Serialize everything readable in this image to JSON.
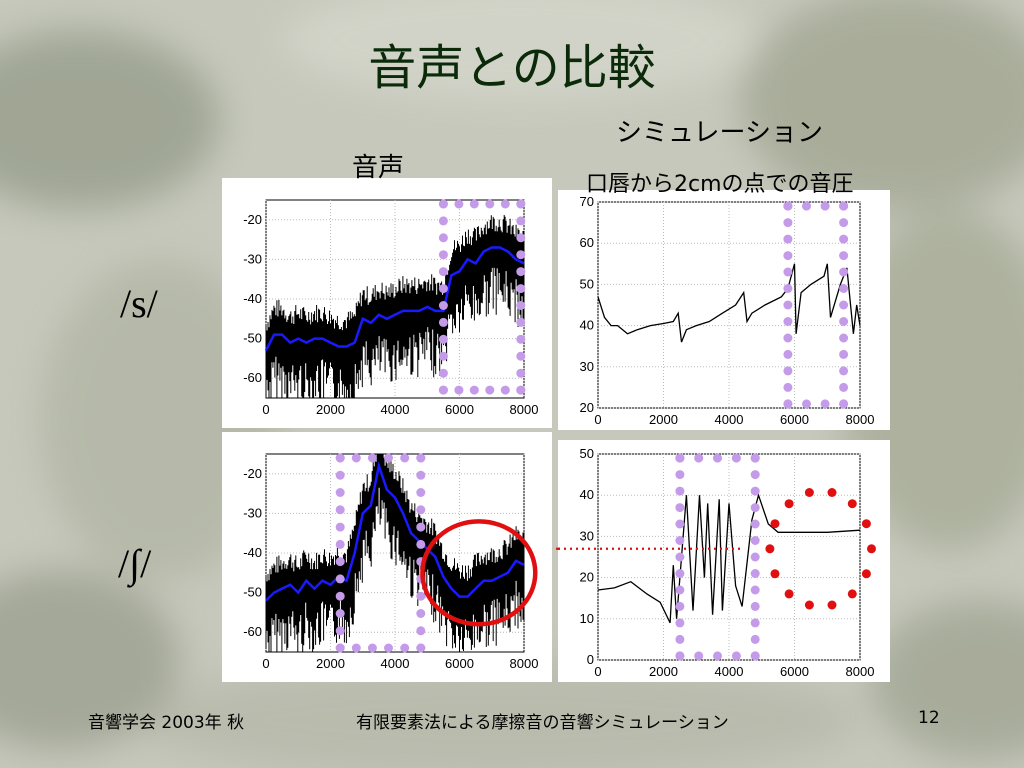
{
  "slide": {
    "title": "音声との比較",
    "label_sim": "シミュレーション",
    "label_voice": "音声",
    "label_sim_sub": "口唇から2cmの点での音圧",
    "phoneme_s": "/s/",
    "phoneme_sh": "/∫/",
    "footer_left": "音響学会 2003年 秋",
    "footer_center": "有限要素法による摩擦音の音響シミュレーション",
    "footer_page": "12"
  },
  "colors": {
    "title": "#0a2a0a",
    "voice_line": "#1a1aff",
    "highlight_dots": "#c49be8",
    "red_marker": "#e01010"
  },
  "chart_data": [
    {
      "id": "voice_s",
      "type": "line",
      "title": "",
      "xlabel": "",
      "ylabel": "",
      "xlim": [
        0,
        8000
      ],
      "ylim": [
        -65,
        -15
      ],
      "xticks": [
        0,
        2000,
        4000,
        6000,
        8000
      ],
      "yticks": [
        -20,
        -30,
        -40,
        -50,
        -60
      ],
      "grid": true,
      "series": [
        {
          "role": "spectrum",
          "color": "#000000",
          "x": [
            0,
            250,
            500,
            750,
            1000,
            1250,
            1500,
            1750,
            2000,
            2250,
            2500,
            2750,
            3000,
            3250,
            3500,
            3750,
            4000,
            4250,
            4500,
            4750,
            5000,
            5250,
            5500,
            5750,
            6000,
            6250,
            6500,
            6750,
            7000,
            7250,
            7500,
            7750,
            8000
          ],
          "y": [
            -53,
            -49,
            -49,
            -51,
            -50,
            -51,
            -50,
            -50,
            -51,
            -52,
            -52,
            -51,
            -45,
            -46,
            -44,
            -45,
            -44,
            -43,
            -43,
            -43,
            -42,
            -43,
            -43,
            -34,
            -33,
            -30,
            -31,
            -28,
            -27,
            -27,
            -28,
            -30,
            -31
          ]
        },
        {
          "role": "envelope",
          "color": "#1a1aff",
          "x": [
            0,
            250,
            500,
            750,
            1000,
            1250,
            1500,
            1750,
            2000,
            2250,
            2500,
            2750,
            3000,
            3250,
            3500,
            3750,
            4000,
            4250,
            4500,
            4750,
            5000,
            5250,
            5500,
            5750,
            6000,
            6250,
            6500,
            6750,
            7000,
            7250,
            7500,
            7750,
            8000
          ],
          "y": [
            -53,
            -49,
            -49,
            -51,
            -50,
            -51,
            -50,
            -50,
            -51,
            -52,
            -52,
            -51,
            -45,
            -46,
            -44,
            -45,
            -44,
            -43,
            -43,
            -43,
            -42,
            -43,
            -43,
            -34,
            -33,
            -30,
            -31,
            -28,
            -27,
            -27,
            -28,
            -30,
            -31
          ]
        }
      ],
      "highlight": {
        "style": "dotted-rect",
        "color": "#c49be8",
        "x": [
          5500,
          7900
        ],
        "y": [
          -63,
          -16
        ]
      }
    },
    {
      "id": "sim_s",
      "type": "line",
      "title": "",
      "xlabel": "",
      "ylabel": "",
      "xlim": [
        0,
        8000
      ],
      "ylim": [
        20,
        70
      ],
      "xticks": [
        0,
        2000,
        4000,
        6000,
        8000
      ],
      "yticks": [
        20,
        30,
        40,
        50,
        60,
        70
      ],
      "grid": true,
      "series": [
        {
          "role": "simulation",
          "color": "#000000",
          "x": [
            0,
            200,
            400,
            600,
            900,
            1200,
            1600,
            2000,
            2300,
            2450,
            2550,
            2700,
            3000,
            3400,
            3800,
            4200,
            4450,
            4550,
            4700,
            5100,
            5600,
            5800,
            6000,
            6050,
            6200,
            6500,
            6900,
            7000,
            7100,
            7400,
            7600,
            7800,
            7900,
            8000
          ],
          "y": [
            47,
            42,
            40,
            40,
            38,
            39,
            40,
            40.5,
            41,
            43,
            36,
            39,
            40,
            41,
            43,
            45,
            48,
            41,
            43,
            45,
            47,
            49,
            55,
            38,
            48,
            50,
            52,
            55,
            42,
            50,
            54,
            38,
            45,
            40
          ]
        }
      ],
      "highlight": {
        "style": "dotted-rect",
        "color": "#c49be8",
        "x": [
          5800,
          7500
        ],
        "y": [
          21,
          69
        ]
      }
    },
    {
      "id": "voice_sh",
      "type": "line",
      "title": "",
      "xlabel": "",
      "ylabel": "",
      "xlim": [
        0,
        8000
      ],
      "ylim": [
        -65,
        -15
      ],
      "xticks": [
        0,
        2000,
        4000,
        6000,
        8000
      ],
      "yticks": [
        -20,
        -30,
        -40,
        -50,
        -60
      ],
      "grid": true,
      "series": [
        {
          "role": "spectrum",
          "color": "#000000",
          "x": [
            0,
            250,
            500,
            750,
            1000,
            1250,
            1500,
            1750,
            2000,
            2250,
            2500,
            2750,
            3000,
            3250,
            3500,
            3750,
            4000,
            4250,
            4500,
            4750,
            5000,
            5250,
            5500,
            5750,
            6000,
            6250,
            6500,
            6750,
            7000,
            7250,
            7500,
            7750,
            8000
          ],
          "y": [
            -52,
            -50,
            -49,
            -48,
            -50,
            -47,
            -49,
            -47,
            -48,
            -46,
            -47,
            -40,
            -30,
            -28,
            -18,
            -24,
            -26,
            -30,
            -35,
            -37,
            -39,
            -41,
            -46,
            -49,
            -51,
            -51,
            -49,
            -47,
            -47,
            -46,
            -45,
            -42,
            -43
          ]
        },
        {
          "role": "envelope",
          "color": "#1a1aff",
          "x": [
            0,
            250,
            500,
            750,
            1000,
            1250,
            1500,
            1750,
            2000,
            2250,
            2500,
            2750,
            3000,
            3250,
            3500,
            3750,
            4000,
            4250,
            4500,
            4750,
            5000,
            5250,
            5500,
            5750,
            6000,
            6250,
            6500,
            6750,
            7000,
            7250,
            7500,
            7750,
            8000
          ],
          "y": [
            -52,
            -50,
            -49,
            -48,
            -50,
            -47,
            -49,
            -47,
            -48,
            -46,
            -47,
            -40,
            -30,
            -28,
            -18,
            -24,
            -26,
            -30,
            -35,
            -37,
            -39,
            -41,
            -46,
            -49,
            -51,
            -51,
            -49,
            -47,
            -47,
            -46,
            -45,
            -42,
            -43
          ]
        }
      ],
      "highlight": {
        "style": "dotted-rect",
        "color": "#c49be8",
        "x": [
          2300,
          4800
        ],
        "y": [
          -64,
          -16
        ]
      },
      "marker": {
        "style": "circle",
        "color": "#e01010",
        "cx": 6600,
        "cy": -45,
        "rx": 1750,
        "ry": 13
      }
    },
    {
      "id": "sim_sh",
      "type": "line",
      "title": "",
      "xlabel": "",
      "ylabel": "",
      "xlim": [
        0,
        8000
      ],
      "ylim": [
        0,
        50
      ],
      "xticks": [
        0,
        2000,
        4000,
        6000,
        8000
      ],
      "yticks": [
        0,
        10,
        20,
        30,
        40,
        50
      ],
      "grid": true,
      "series": [
        {
          "role": "simulation",
          "color": "#000000",
          "x": [
            0,
            500,
            1000,
            1500,
            1900,
            2200,
            2300,
            2400,
            2500,
            2700,
            2900,
            3100,
            3250,
            3350,
            3500,
            3700,
            3800,
            4000,
            4200,
            4400,
            4700,
            4900,
            5200,
            5500,
            6000,
            7000,
            8000
          ],
          "y": [
            17,
            17.5,
            19,
            16,
            14,
            9,
            23,
            10,
            20,
            40,
            12,
            40,
            20,
            38,
            11,
            39,
            12,
            38,
            18,
            13,
            34,
            40,
            33,
            31,
            31,
            31,
            31.5
          ]
        }
      ],
      "highlight": {
        "style": "dotted-rect",
        "color": "#c49be8",
        "x": [
          2500,
          4800
        ],
        "y": [
          1,
          49
        ]
      },
      "marker": {
        "style": "dotted-circle",
        "color": "#e01010",
        "cx": 6800,
        "cy": 27,
        "rx": 1550,
        "ry": 14
      },
      "marker_line": {
        "style": "dotted-horizontal",
        "color": "#e01010",
        "y": 27
      }
    }
  ]
}
